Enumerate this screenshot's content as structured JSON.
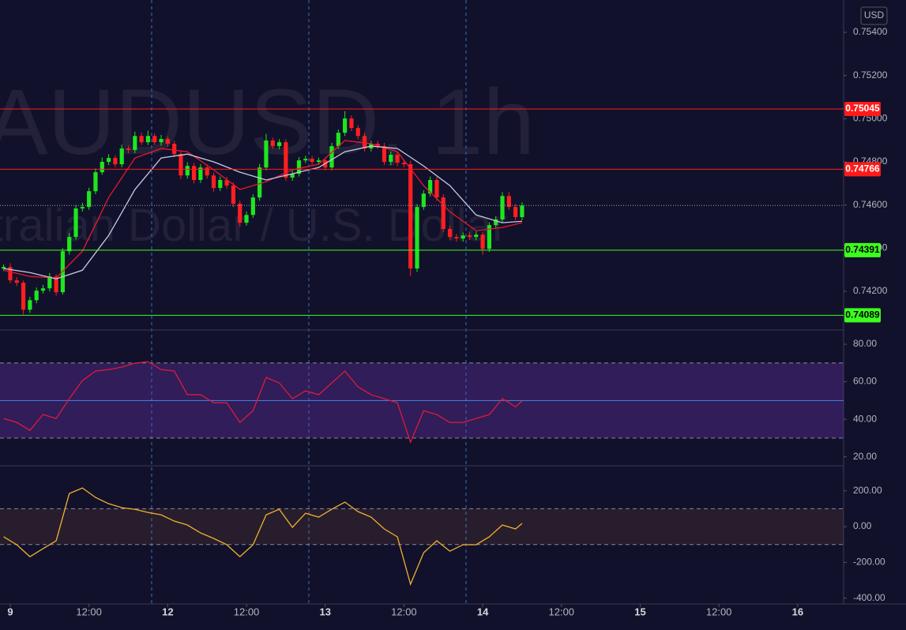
{
  "chart_data": [
    {
      "type": "candlestick",
      "title": "AUDUSD, 1h",
      "subtitle": "Australian Dollar / U.S. Dollar",
      "currency": "USD",
      "x": [
        -1,
        0,
        1,
        2,
        3,
        4,
        5,
        6,
        7,
        8,
        9,
        10,
        11,
        12,
        13,
        14,
        15,
        16,
        17,
        18,
        19,
        20,
        21,
        22,
        23,
        24,
        25,
        26,
        27,
        28,
        29,
        30,
        31,
        32,
        33,
        34,
        35,
        36,
        37,
        38,
        39,
        40,
        41,
        42,
        43,
        44,
        45,
        46,
        47,
        48,
        49,
        50,
        51,
        52,
        53,
        54,
        55,
        56,
        57,
        58,
        59,
        60,
        61,
        62,
        63,
        64,
        65,
        66,
        67,
        68,
        69,
        70,
        71,
        72,
        73,
        74,
        75,
        76,
        77,
        78
      ],
      "open": [
        0.74306,
        0.74313,
        0.74251,
        0.7424,
        0.74115,
        0.74159,
        0.74203,
        0.74214,
        0.74269,
        0.74196,
        0.74386,
        0.74452,
        0.74584,
        0.74591,
        0.74664,
        0.74752,
        0.748,
        0.74818,
        0.74789,
        0.74862,
        0.74855,
        0.7492,
        0.74891,
        0.7492,
        0.74891,
        0.74906,
        0.74884,
        0.74836,
        0.74737,
        0.74781,
        0.74716,
        0.74774,
        0.74737,
        0.74679,
        0.74716,
        0.7469,
        0.74606,
        0.74518,
        0.74554,
        0.74635,
        0.74774,
        0.74899,
        0.74873,
        0.74891,
        0.74727,
        0.74745,
        0.74807,
        0.74814,
        0.748,
        0.74807,
        0.74774,
        0.74873,
        0.74935,
        0.75001,
        0.74957,
        0.7492,
        0.74862,
        0.74884,
        0.74873,
        0.748,
        0.74833,
        0.74796,
        0.74789,
        0.74306,
        0.74591,
        0.74653,
        0.74716,
        0.74635,
        0.74489,
        0.74452,
        0.74445,
        0.74459,
        0.74452,
        0.74463,
        0.74397,
        0.74507,
        0.74533,
        0.74642,
        0.74591,
        0.74544
      ],
      "high": [
        0.74325,
        0.7433,
        0.74265,
        0.7425,
        0.74175,
        0.74218,
        0.7423,
        0.74285,
        0.7428,
        0.744,
        0.7447,
        0.746,
        0.7461,
        0.7468,
        0.7477,
        0.7482,
        0.74835,
        0.7483,
        0.7488,
        0.74875,
        0.7494,
        0.74935,
        0.74945,
        0.74932,
        0.74925,
        0.74918,
        0.74898,
        0.7485,
        0.74798,
        0.74795,
        0.7479,
        0.74788,
        0.7475,
        0.74732,
        0.7473,
        0.74705,
        0.7462,
        0.7457,
        0.7465,
        0.7479,
        0.7493,
        0.74912,
        0.74905,
        0.74905,
        0.7476,
        0.74822,
        0.74828,
        0.74828,
        0.7482,
        0.7482,
        0.74888,
        0.7495,
        0.75035,
        0.75015,
        0.7497,
        0.74935,
        0.74898,
        0.74898,
        0.74888,
        0.74848,
        0.74848,
        0.7481,
        0.74805,
        0.74605,
        0.74668,
        0.74732,
        0.7473,
        0.7465,
        0.74503,
        0.74466,
        0.74473,
        0.74473,
        0.74478,
        0.74477,
        0.7452,
        0.74548,
        0.7466,
        0.7466,
        0.74605,
        0.74612
      ],
      "low": [
        0.74294,
        0.74238,
        0.74225,
        0.74093,
        0.741,
        0.74145,
        0.7419,
        0.742,
        0.7418,
        0.74185,
        0.7437,
        0.7444,
        0.7457,
        0.74578,
        0.7465,
        0.7474,
        0.74785,
        0.74775,
        0.74775,
        0.7484,
        0.7484,
        0.74878,
        0.74878,
        0.74878,
        0.74875,
        0.7487,
        0.74822,
        0.7472,
        0.74722,
        0.747,
        0.74702,
        0.74722,
        0.74662,
        0.74665,
        0.74675,
        0.7459,
        0.745,
        0.74505,
        0.7454,
        0.7462,
        0.7476,
        0.7486,
        0.74858,
        0.74712,
        0.74712,
        0.74732,
        0.74795,
        0.74786,
        0.74786,
        0.7476,
        0.7476,
        0.7486,
        0.7492,
        0.74943,
        0.74905,
        0.74848,
        0.74848,
        0.7486,
        0.74785,
        0.74785,
        0.7478,
        0.74775,
        0.7427,
        0.7429,
        0.74578,
        0.7464,
        0.7462,
        0.74475,
        0.74438,
        0.7443,
        0.7443,
        0.74438,
        0.74438,
        0.7437,
        0.74383,
        0.74493,
        0.7452,
        0.74577,
        0.7453,
        0.7453
      ],
      "close": [
        0.74313,
        0.74251,
        0.7424,
        0.74115,
        0.74159,
        0.74203,
        0.74214,
        0.74269,
        0.74196,
        0.74386,
        0.74452,
        0.74584,
        0.74591,
        0.74664,
        0.74752,
        0.748,
        0.74818,
        0.74789,
        0.74862,
        0.74855,
        0.7492,
        0.74891,
        0.7492,
        0.74891,
        0.74906,
        0.74884,
        0.74836,
        0.74737,
        0.74781,
        0.74716,
        0.74774,
        0.74737,
        0.74679,
        0.74716,
        0.7469,
        0.74606,
        0.74518,
        0.74554,
        0.74635,
        0.74774,
        0.74899,
        0.74873,
        0.74891,
        0.74727,
        0.74745,
        0.74807,
        0.74814,
        0.748,
        0.74807,
        0.74774,
        0.74873,
        0.74935,
        0.75001,
        0.74957,
        0.7492,
        0.74862,
        0.74884,
        0.74873,
        0.748,
        0.74833,
        0.74796,
        0.74789,
        0.74306,
        0.74591,
        0.74653,
        0.74716,
        0.74635,
        0.74489,
        0.74452,
        0.74445,
        0.74459,
        0.74452,
        0.74463,
        0.74397,
        0.74507,
        0.74533,
        0.74642,
        0.74591,
        0.74544,
        0.74598
      ],
      "up_color": "#1ee61e",
      "down_color": "#ff1f1f",
      "series": [
        {
          "color": "#e8192c",
          "x": [
            -1,
            3,
            7,
            11,
            15,
            19,
            23,
            27,
            31,
            35,
            39,
            43,
            47,
            51,
            55,
            59,
            63,
            67,
            71,
            75,
            78
          ],
          "values": [
            0.74298,
            0.74269,
            0.74262,
            0.74386,
            0.74635,
            0.74818,
            0.74862,
            0.74847,
            0.74763,
            0.74672,
            0.74708,
            0.74763,
            0.74789,
            0.74899,
            0.74884,
            0.74847,
            0.7469,
            0.74569,
            0.74481,
            0.74496,
            0.74518
          ]
        },
        {
          "color": "#c9c9e6",
          "x": [
            -1,
            3,
            7,
            11,
            15,
            19,
            23,
            27,
            31,
            35,
            39,
            43,
            47,
            51,
            55,
            59,
            63,
            67,
            71,
            75,
            78
          ],
          "values": [
            0.74306,
            0.74287,
            0.74258,
            0.74298,
            0.74459,
            0.74672,
            0.74818,
            0.74836,
            0.748,
            0.74752,
            0.74716,
            0.74745,
            0.74774,
            0.74847,
            0.74873,
            0.74862,
            0.74781,
            0.7469,
            0.74554,
            0.74518,
            0.74525
          ]
        }
      ],
      "levels": [
        {
          "value": 0.75045,
          "color": "#ff1a1a",
          "text_color": "#ffffff"
        },
        {
          "value": 0.74766,
          "color": "#ff1a1a",
          "text_color": "#ffffff"
        },
        {
          "value": 0.74391,
          "color": "#3cff1e",
          "text_color": "#000000"
        },
        {
          "value": 0.74089,
          "color": "#3cff1e",
          "text_color": "#000000"
        }
      ],
      "xlim": [
        -1.56,
        127
      ],
      "xticks": [
        {
          "value": 0,
          "label": "9"
        },
        {
          "value": 12,
          "label": "12:00"
        },
        {
          "value": 24,
          "label": "12"
        },
        {
          "value": 36,
          "label": "12:00"
        },
        {
          "value": 48,
          "label": "13"
        },
        {
          "value": 60,
          "label": "12:00"
        },
        {
          "value": 72,
          "label": "14"
        },
        {
          "value": 84,
          "label": "12:00"
        },
        {
          "value": 96,
          "label": "15"
        },
        {
          "value": 108,
          "label": "12:00"
        },
        {
          "value": 120,
          "label": "16"
        }
      ],
      "ylim": [
        0.74021,
        0.7555
      ],
      "yticks": [
        {
          "value": 0.754,
          "label": "0.75400"
        },
        {
          "value": 0.752,
          "label": "0.75200"
        },
        {
          "value": 0.75,
          "label": "0.75000"
        },
        {
          "value": 0.748,
          "label": "0.74800"
        },
        {
          "value": 0.746,
          "label": "0.74600"
        },
        {
          "value": 0.744,
          "label": "0.74400"
        },
        {
          "value": 0.742,
          "label": "0.74200"
        }
      ]
    },
    {
      "type": "line",
      "x": [
        -1,
        1,
        3,
        5,
        7,
        9,
        11,
        13,
        15,
        17,
        19,
        21,
        23,
        25,
        27,
        29,
        31,
        33,
        35,
        37,
        39,
        41,
        43,
        45,
        47,
        49,
        51,
        53,
        55,
        57,
        59,
        61,
        63,
        65,
        67,
        69,
        71,
        73,
        75,
        77,
        78
      ],
      "series": [
        {
          "color": "#e0193c",
          "values": [
            40.4,
            38.3,
            34.1,
            42.5,
            40.4,
            51.0,
            60.6,
            65.7,
            66.5,
            67.8,
            69.9,
            70.7,
            66.5,
            65.7,
            53.1,
            53.1,
            48.8,
            48.8,
            38.3,
            44.6,
            62.3,
            59.4,
            51.0,
            55.2,
            53.1,
            59.4,
            65.7,
            57.3,
            53.1,
            51.0,
            48.8,
            27.8,
            44.6,
            42.5,
            38.3,
            38.3,
            40.4,
            42.5,
            51.0,
            46.7,
            49.7
          ]
        }
      ],
      "band": [
        30,
        70
      ],
      "band_color": "rgba(126,60,210,0.28)",
      "midline": 50,
      "midline_color": "#4a86e8",
      "ylim": [
        15.2,
        87.6
      ],
      "yticks": [
        {
          "value": 80,
          "label": "80.00"
        },
        {
          "value": 60,
          "label": "60.00"
        },
        {
          "value": 40,
          "label": "40.00"
        },
        {
          "value": 20,
          "label": "20.00"
        }
      ]
    },
    {
      "type": "line",
      "x": [
        -1,
        1,
        3,
        5,
        7,
        9,
        11,
        13,
        15,
        17,
        19,
        21,
        23,
        25,
        27,
        29,
        31,
        33,
        35,
        37,
        39,
        41,
        43,
        45,
        47,
        49,
        51,
        53,
        55,
        57,
        59,
        61,
        63,
        65,
        67,
        69,
        71,
        73,
        75,
        77,
        78
      ],
      "series": [
        {
          "color": "#f0b030",
          "values": [
            -57,
            -101,
            -168,
            -123,
            -79,
            185,
            216,
            163,
            128,
            106,
            97,
            79,
            66,
            31,
            9,
            -35,
            -66,
            -101,
            -168,
            -101,
            66,
            97,
            -4,
            75,
            53,
            97,
            137,
            84,
            53,
            -13,
            -57,
            -322,
            -146,
            -79,
            -137,
            -101,
            -101,
            -57,
            9,
            -13,
            18
          ]
        }
      ],
      "band": [
        -100,
        100
      ],
      "band_color": "rgba(255,150,60,0.09)",
      "ylim": [
        -432,
        340
      ],
      "yticks": [
        {
          "value": 200,
          "label": "200.00"
        },
        {
          "value": 0,
          "label": "0.00"
        },
        {
          "value": -200,
          "label": "-200.00"
        },
        {
          "value": -400,
          "label": "-400.00"
        }
      ]
    }
  ]
}
